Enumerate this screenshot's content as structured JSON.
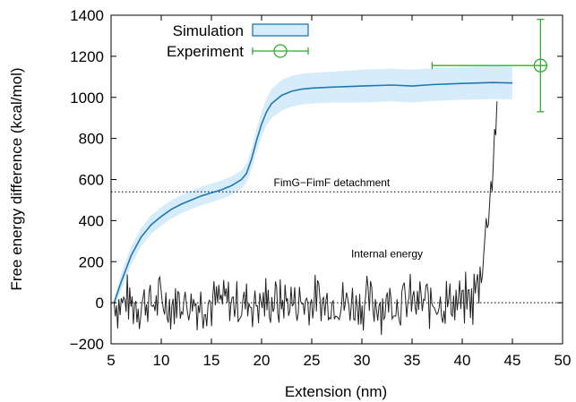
{
  "chart_data": {
    "type": "line",
    "xlabel": "Extension (nm)",
    "ylabel": "Free energy difference (kcal/mol)",
    "xlim": [
      5,
      50
    ],
    "ylim": [
      -200,
      1400
    ],
    "xticks": [
      5,
      10,
      15,
      20,
      25,
      30,
      35,
      40,
      45,
      50
    ],
    "yticks": [
      -200,
      0,
      200,
      400,
      600,
      800,
      1000,
      1200,
      1400
    ],
    "ytick_labels": [
      "−200",
      "0",
      "200",
      "400",
      "600",
      "800",
      "1000",
      "1200",
      "1400"
    ],
    "legend_position": "top-left",
    "grid": false,
    "colors": {
      "simulation": "#1f78b4",
      "band": "#d6ecfa",
      "experiment": "#33aa33",
      "internal": "#222222",
      "reference": "#000000"
    },
    "series": [
      {
        "name": "Simulation",
        "style": "line-with-band",
        "x": [
          5.3,
          6,
          7,
          8,
          9,
          10,
          11,
          12,
          13,
          14,
          15,
          16,
          17,
          18,
          18.5,
          19,
          19.5,
          20,
          20.5,
          21,
          22,
          23,
          24,
          25,
          27,
          30,
          33,
          35,
          37,
          40,
          43,
          45
        ],
        "y": [
          0,
          100,
          230,
          320,
          380,
          420,
          455,
          480,
          500,
          520,
          535,
          550,
          570,
          600,
          630,
          700,
          790,
          870,
          930,
          970,
          1010,
          1030,
          1040,
          1045,
          1050,
          1055,
          1060,
          1055,
          1062,
          1068,
          1072,
          1070
        ],
        "band": [
          20,
          40,
          45,
          45,
          45,
          45,
          45,
          45,
          45,
          45,
          45,
          45,
          45,
          45,
          45,
          50,
          55,
          60,
          65,
          70,
          75,
          75,
          75,
          75,
          75,
          80,
          80,
          80,
          80,
          80,
          80,
          80
        ]
      },
      {
        "name": "Experiment",
        "style": "point-with-errorbars",
        "x": [
          47.8
        ],
        "y": [
          1155
        ],
        "xerr": [
          [
            37,
            48.5
          ]
        ],
        "yerr": [
          [
            930,
            1380
          ]
        ]
      },
      {
        "name": "Internal energy",
        "style": "noisy-line",
        "x_start": 5.3,
        "x_end": 43.5,
        "noise_amplitude": 160,
        "rise_start": 40.5,
        "end_value": 980
      }
    ],
    "reference_lines": [
      {
        "y": 540,
        "style": "dotted"
      },
      {
        "y": 0,
        "style": "dotted"
      }
    ],
    "annotations": [
      {
        "text": "FimG−FimF detachment",
        "x": 27,
        "y": 568
      },
      {
        "text": "Internal energy",
        "x": 32.5,
        "y": 220
      }
    ]
  }
}
